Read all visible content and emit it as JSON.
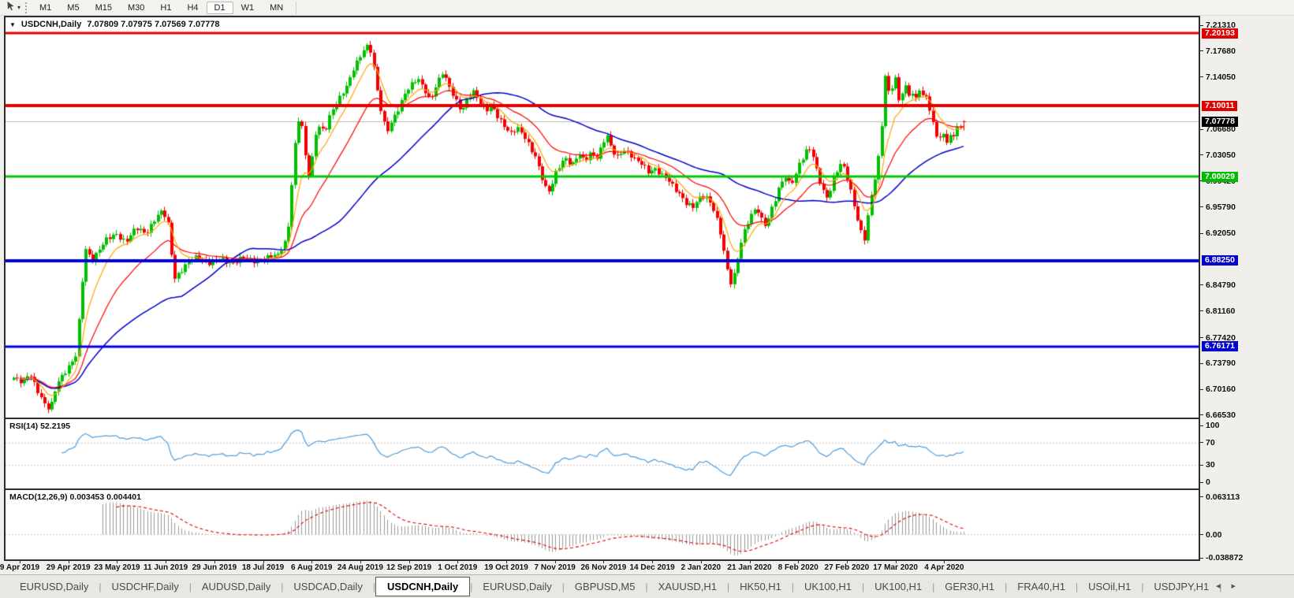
{
  "toolbar": {
    "timeframes": [
      "M1",
      "M5",
      "M15",
      "M30",
      "H1",
      "H4",
      "D1",
      "W1",
      "MN"
    ],
    "active_timeframe": "D1"
  },
  "chart": {
    "symbol_label": "USDCNH,Daily",
    "ohlc_label": "7.07809 7.07975 7.07569 7.07778",
    "rsi_label": "RSI(14) 52.2195",
    "macd_label": "MACD(12,26,9) 0.003453 0.004401"
  },
  "price_scale": {
    "ticks": [
      "7.21310",
      "7.17680",
      "7.14050",
      "7.06680",
      "7.03050",
      "6.99420",
      "6.95790",
      "6.92050",
      "6.84790",
      "6.81160",
      "6.77420",
      "6.73790",
      "6.70160",
      "6.66530"
    ],
    "badges": [
      {
        "text": "7.20193",
        "color": "#e00000"
      },
      {
        "text": "7.10011",
        "color": "#e00000"
      },
      {
        "text": "7.07778",
        "color": "#000000"
      },
      {
        "text": "7.00029",
        "color": "#00bb00"
      },
      {
        "text": "6.88250",
        "color": "#0000cc"
      },
      {
        "text": "6.76171",
        "color": "#0000cc"
      }
    ]
  },
  "rsi_scale": [
    "100",
    "70",
    "30",
    "0"
  ],
  "macd_scale": [
    "0.063113",
    "0.00",
    "-0.038872"
  ],
  "date_axis": [
    "9 Apr 2019",
    "29 Apr 2019",
    "23 May 2019",
    "11 Jun 2019",
    "29 Jun 2019",
    "18 Jul 2019",
    "6 Aug 2019",
    "24 Aug 2019",
    "12 Sep 2019",
    "1 Oct 2019",
    "19 Oct 2019",
    "7 Nov 2019",
    "26 Nov 2019",
    "14 Dec 2019",
    "2 Jan 2020",
    "21 Jan 2020",
    "8 Feb 2020",
    "27 Feb 2020",
    "17 Mar 2020",
    "4 Apr 2020"
  ],
  "tabs": {
    "items": [
      "EURUSD,Daily",
      "USDCHF,Daily",
      "AUDUSD,Daily",
      "USDCAD,Daily",
      "USDCNH,Daily",
      "EURUSD,Daily",
      "GBPUSD,M5",
      "XAUUSD,H1",
      "HK50,H1",
      "UK100,H1",
      "UK100,H1",
      "GER30,H1",
      "FRA40,H1",
      "USOil,H1",
      "USDJPY,H1"
    ],
    "active_index": 4,
    "scroll_left": "◂",
    "scroll_right": "▸"
  },
  "colors": {
    "up": "#00c000",
    "down": "#f40000",
    "ma_fast": "#ffa500",
    "ma_mid": "#ff0000",
    "ma_slow": "#0000cc",
    "rsi": "#4f9bd9",
    "macd_hist": "#9a9a9a",
    "macd_signal": "#e00000",
    "current_price_line": "#b8b8b8"
  },
  "chart_data": {
    "type": "candlestick",
    "symbol": "USDCNH",
    "timeframe": "Daily",
    "last_bar": {
      "open": 7.07809,
      "high": 7.07975,
      "low": 7.07569,
      "close": 7.07778
    },
    "current_price": 7.07778,
    "price_axis_range": [
      6.6653,
      7.2131
    ],
    "indicators": {
      "rsi": {
        "period": 14,
        "value": 52.2195,
        "levels": [
          70,
          30
        ]
      },
      "macd": {
        "fast": 12,
        "slow": 26,
        "signal": 9,
        "value": 0.003453,
        "signal_value": 0.004401,
        "range": [
          -0.038872,
          0.063113
        ]
      }
    },
    "hlines": [
      {
        "value": 7.20193,
        "color": "#e00000",
        "width": 3
      },
      {
        "value": 7.10011,
        "color": "#e00000",
        "width": 4
      },
      {
        "value": 7.00029,
        "color": "#00c800",
        "width": 3
      },
      {
        "value": 6.8825,
        "color": "#0000e0",
        "width": 4
      },
      {
        "value": 6.76171,
        "color": "#0000e0",
        "width": 3
      }
    ],
    "close_path": [
      [
        10,
        6.718
      ],
      [
        22,
        6.709
      ],
      [
        30,
        6.726
      ],
      [
        40,
        6.701
      ],
      [
        50,
        6.678
      ],
      [
        56,
        6.672
      ],
      [
        65,
        6.712
      ],
      [
        78,
        6.732
      ],
      [
        88,
        6.745
      ],
      [
        93,
        6.8
      ],
      [
        98,
        6.868
      ],
      [
        102,
        6.905
      ],
      [
        108,
        6.882
      ],
      [
        118,
        6.897
      ],
      [
        128,
        6.912
      ],
      [
        140,
        6.921
      ],
      [
        152,
        6.908
      ],
      [
        165,
        6.928
      ],
      [
        178,
        6.922
      ],
      [
        190,
        6.942
      ],
      [
        199,
        6.952
      ],
      [
        207,
        6.93
      ],
      [
        213,
        6.858
      ],
      [
        220,
        6.865
      ],
      [
        230,
        6.878
      ],
      [
        243,
        6.889
      ],
      [
        258,
        6.879
      ],
      [
        272,
        6.885
      ],
      [
        287,
        6.879
      ],
      [
        300,
        6.886
      ],
      [
        315,
        6.882
      ],
      [
        330,
        6.886
      ],
      [
        345,
        6.89
      ],
      [
        355,
        6.912
      ],
      [
        360,
        6.946
      ],
      [
        364,
        7.022
      ],
      [
        369,
        7.064
      ],
      [
        373,
        7.094
      ],
      [
        377,
        7.052
      ],
      [
        382,
        7.01
      ],
      [
        386,
        6.998
      ],
      [
        391,
        7.058
      ],
      [
        397,
        7.072
      ],
      [
        404,
        7.062
      ],
      [
        411,
        7.086
      ],
      [
        418,
        7.102
      ],
      [
        426,
        7.118
      ],
      [
        434,
        7.132
      ],
      [
        441,
        7.152
      ],
      [
        448,
        7.165
      ],
      [
        455,
        7.182
      ],
      [
        461,
        7.186
      ],
      [
        466,
        7.16
      ],
      [
        471,
        7.122
      ],
      [
        477,
        7.084
      ],
      [
        483,
        7.062
      ],
      [
        490,
        7.08
      ],
      [
        498,
        7.098
      ],
      [
        506,
        7.118
      ],
      [
        514,
        7.128
      ],
      [
        522,
        7.138
      ],
      [
        530,
        7.126
      ],
      [
        538,
        7.108
      ],
      [
        546,
        7.128
      ],
      [
        554,
        7.146
      ],
      [
        562,
        7.128
      ],
      [
        570,
        7.11
      ],
      [
        578,
        7.092
      ],
      [
        585,
        7.108
      ],
      [
        592,
        7.12
      ],
      [
        600,
        7.108
      ],
      [
        608,
        7.094
      ],
      [
        616,
        7.1
      ],
      [
        624,
        7.082
      ],
      [
        632,
        7.072
      ],
      [
        640,
        7.062
      ],
      [
        648,
        7.07
      ],
      [
        656,
        7.058
      ],
      [
        664,
        7.042
      ],
      [
        672,
        7.028
      ],
      [
        678,
        7.006
      ],
      [
        684,
        6.985
      ],
      [
        690,
        6.978
      ],
      [
        696,
        7.002
      ],
      [
        703,
        7.018
      ],
      [
        710,
        7.028
      ],
      [
        718,
        7.016
      ],
      [
        726,
        7.032
      ],
      [
        734,
        7.022
      ],
      [
        742,
        7.035
      ],
      [
        750,
        7.028
      ],
      [
        757,
        7.048
      ],
      [
        762,
        7.058
      ],
      [
        768,
        7.038
      ],
      [
        775,
        7.028
      ],
      [
        783,
        7.04
      ],
      [
        791,
        7.032
      ],
      [
        799,
        7.022
      ],
      [
        807,
        7.018
      ],
      [
        815,
        7.008
      ],
      [
        823,
        7.012
      ],
      [
        831,
        7.002
      ],
      [
        839,
        6.996
      ],
      [
        847,
        6.986
      ],
      [
        855,
        6.976
      ],
      [
        863,
        6.962
      ],
      [
        871,
        6.956
      ],
      [
        879,
        6.97
      ],
      [
        887,
        6.975
      ],
      [
        895,
        6.962
      ],
      [
        901,
        6.942
      ],
      [
        907,
        6.916
      ],
      [
        912,
        6.885
      ],
      [
        917,
        6.856
      ],
      [
        921,
        6.85
      ],
      [
        926,
        6.878
      ],
      [
        932,
        6.908
      ],
      [
        938,
        6.928
      ],
      [
        945,
        6.945
      ],
      [
        952,
        6.958
      ],
      [
        958,
        6.942
      ],
      [
        964,
        6.932
      ],
      [
        970,
        6.952
      ],
      [
        976,
        6.968
      ],
      [
        982,
        6.988
      ],
      [
        988,
        7.002
      ],
      [
        994,
        6.992
      ],
      [
        1000,
        6.998
      ],
      [
        1006,
        7.018
      ],
      [
        1012,
        7.028
      ],
      [
        1018,
        7.042
      ],
      [
        1024,
        7.028
      ],
      [
        1030,
        7.002
      ],
      [
        1036,
        6.982
      ],
      [
        1042,
        6.968
      ],
      [
        1048,
        6.992
      ],
      [
        1054,
        7.008
      ],
      [
        1060,
        7.022
      ],
      [
        1066,
        7.005
      ],
      [
        1072,
        6.978
      ],
      [
        1078,
        6.948
      ],
      [
        1084,
        6.922
      ],
      [
        1089,
        6.912
      ],
      [
        1094,
        6.952
      ],
      [
        1099,
        6.985
      ],
      [
        1104,
        7.012
      ],
      [
        1109,
        7.048
      ],
      [
        1113,
        7.112
      ],
      [
        1116,
        7.158
      ],
      [
        1120,
        7.108
      ],
      [
        1124,
        7.128
      ],
      [
        1128,
        7.138
      ],
      [
        1132,
        7.108
      ],
      [
        1136,
        7.118
      ],
      [
        1140,
        7.132
      ],
      [
        1144,
        7.112
      ],
      [
        1148,
        7.125
      ],
      [
        1152,
        7.102
      ],
      [
        1156,
        7.115
      ],
      [
        1160,
        7.128
      ],
      [
        1164,
        7.105
      ],
      [
        1168,
        7.118
      ],
      [
        1172,
        7.092
      ],
      [
        1176,
        7.075
      ],
      [
        1180,
        7.06
      ],
      [
        1184,
        7.052
      ],
      [
        1188,
        7.062
      ],
      [
        1192,
        7.045
      ],
      [
        1196,
        7.058
      ],
      [
        1200,
        7.052
      ],
      [
        1204,
        7.068
      ],
      [
        1208,
        7.075
      ],
      [
        1212,
        7.065
      ],
      [
        1216,
        7.0778
      ]
    ]
  }
}
